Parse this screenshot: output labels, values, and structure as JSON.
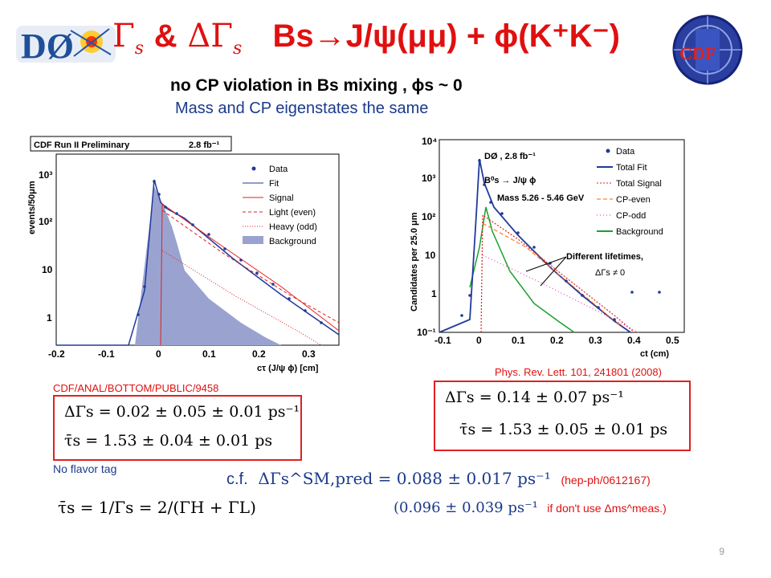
{
  "title": {
    "gamma": "Γ",
    "s_sub": "s",
    "amp": "&",
    "delta_gamma": "ΔΓ",
    "s_sub2": "s",
    "decay": "Bs→J/ψ(μμ) + ϕ(K⁺K⁻)"
  },
  "logos": {
    "d0": "DØ",
    "cdf": "CDF"
  },
  "subtitle": {
    "line1": "no CP violation in Bs mixing , ϕs ~ 0",
    "line2": "Mass and CP eigenstates the same"
  },
  "left_plot": {
    "header": "CDF Run II Preliminary",
    "lumi": "2.8 fb⁻¹",
    "ylabel": "events/50μm",
    "xlabel": "cτ (J/ψ ϕ) [cm]",
    "yticks": [
      "10³",
      "10²",
      "10",
      "1"
    ],
    "xticks": [
      "-0.2",
      "-0.1",
      "0",
      "0.1",
      "0.2",
      "0.3"
    ],
    "legend": [
      "Data",
      "Fit",
      "Signal",
      "Light (even)",
      "Heavy (odd)",
      "Background"
    ]
  },
  "right_plot": {
    "ylabel": "Candidates per 25.0 μm",
    "xlabel": "ct (cm)",
    "yticks": [
      "10⁴",
      "10³",
      "10²",
      "10",
      "1",
      "10⁻¹"
    ],
    "xticks": [
      "-0.1",
      "0",
      "0.1",
      "0.2",
      "0.3",
      "0.4",
      "0.5"
    ],
    "info1": "DØ , 2.8 fb⁻¹",
    "info2": "B⁰s → J/ψ ϕ",
    "info3": "Mass 5.26 - 5.46 GeV",
    "legend": [
      "Data",
      "Total Fit",
      "Total Signal",
      "CP-even",
      "CP-odd",
      "Background"
    ],
    "annotation1": "Different lifetimes,",
    "annotation2": "ΔΓs ≠ 0"
  },
  "results": {
    "cdf_ref": "CDF/ANAL/BOTTOM/PUBLIC/9458",
    "cdf_dg": "ΔΓs = 0.02 ± 0.05 ± 0.01 ps⁻¹",
    "cdf_tau": "τ̄s = 1.53 ± 0.04 ± 0.01 ps",
    "d0_ref": "Phys. Rev. Lett. 101, 241801 (2008)",
    "d0_dg": "ΔΓs = 0.14 ± 0.07 ps⁻¹",
    "d0_tau": "τ̄s = 1.53 ± 0.05 ± 0.01 ps",
    "no_flavor": "No flavor tag",
    "tau_def": "τ̄s = 1/Γs = 2/(ΓH + ΓL)"
  },
  "prediction": {
    "cf": "c.f.",
    "sm_pred": "ΔΓs^SM,pred = 0.088 ± 0.017 ps⁻¹",
    "ref": "(hep-ph/0612167)",
    "alt_open": "(0.096 ± 0.039 ps⁻¹",
    "alt_text": "if don't use Δms^meas.)"
  },
  "page_number": "9"
}
